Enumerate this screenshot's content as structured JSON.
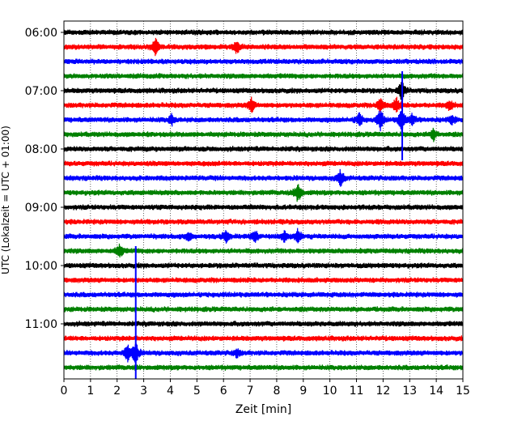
{
  "chart_data": {
    "type": "line",
    "title": "",
    "xlabel": "Zeit  [min]",
    "ylabel": "UTC (Lokalzeit = UTC + 01:00)",
    "xlim": [
      0,
      15
    ],
    "x_ticks": [
      "0",
      "1",
      "2",
      "3",
      "4",
      "5",
      "6",
      "7",
      "8",
      "9",
      "10",
      "11",
      "12",
      "13",
      "14",
      "15"
    ],
    "y_tick_labels": [
      "06:00",
      "07:00",
      "08:00",
      "09:00",
      "10:00",
      "11:00"
    ],
    "y_tick_rows": [
      0,
      4,
      8,
      12,
      16,
      20
    ],
    "grid": "vertical dotted",
    "row_interval_minutes": 15,
    "trace_colors": [
      "#000000",
      "#ff0000",
      "#0000ff",
      "#008000"
    ],
    "rows": [
      {
        "start": "06:00",
        "color": "#000000",
        "events": []
      },
      {
        "start": "06:15",
        "color": "#ff0000",
        "events": [
          {
            "t": 3.45,
            "amp": 1.2
          },
          {
            "t": 6.5,
            "amp": 0.8
          }
        ]
      },
      {
        "start": "06:30",
        "color": "#0000ff",
        "events": []
      },
      {
        "start": "06:45",
        "color": "#008000",
        "events": []
      },
      {
        "start": "07:00",
        "color": "#000000",
        "events": [
          {
            "t": 12.7,
            "amp": 1.5
          }
        ]
      },
      {
        "start": "07:15",
        "color": "#ff0000",
        "events": [
          {
            "t": 7.05,
            "amp": 1.0
          },
          {
            "t": 11.9,
            "amp": 1.1
          },
          {
            "t": 12.5,
            "amp": 1.1
          },
          {
            "t": 14.5,
            "amp": 0.7
          }
        ]
      },
      {
        "start": "07:30",
        "color": "#0000ff",
        "events": [
          {
            "t": 4.05,
            "amp": 0.7
          },
          {
            "t": 11.1,
            "amp": 1.0
          },
          {
            "t": 11.9,
            "amp": 1.6
          },
          {
            "t": 12.7,
            "amp": 1.8
          },
          {
            "t": 13.1,
            "amp": 0.8
          },
          {
            "t": 14.6,
            "amp": 0.6
          }
        ]
      },
      {
        "start": "07:45",
        "color": "#008000",
        "events": [
          {
            "t": 13.9,
            "amp": 0.8
          }
        ]
      },
      {
        "start": "08:00",
        "color": "#000000",
        "events": []
      },
      {
        "start": "08:15",
        "color": "#ff0000",
        "events": []
      },
      {
        "start": "08:30",
        "color": "#0000ff",
        "events": [
          {
            "t": 10.4,
            "amp": 1.2
          }
        ]
      },
      {
        "start": "08:45",
        "color": "#008000",
        "events": [
          {
            "t": 8.8,
            "amp": 1.5
          }
        ]
      },
      {
        "start": "09:00",
        "color": "#000000",
        "events": []
      },
      {
        "start": "09:15",
        "color": "#ff0000",
        "events": []
      },
      {
        "start": "09:30",
        "color": "#0000ff",
        "events": [
          {
            "t": 4.7,
            "amp": 0.6
          },
          {
            "t": 6.1,
            "amp": 0.8
          },
          {
            "t": 7.2,
            "amp": 0.8
          },
          {
            "t": 8.3,
            "amp": 0.8
          },
          {
            "t": 8.8,
            "amp": 1.0
          }
        ]
      },
      {
        "start": "09:45",
        "color": "#008000",
        "events": [
          {
            "t": 2.1,
            "amp": 1.0
          }
        ]
      },
      {
        "start": "10:00",
        "color": "#000000",
        "events": []
      },
      {
        "start": "10:15",
        "color": "#ff0000",
        "events": []
      },
      {
        "start": "10:30",
        "color": "#0000ff",
        "events": []
      },
      {
        "start": "10:45",
        "color": "#008000",
        "events": []
      },
      {
        "start": "11:00",
        "color": "#000000",
        "events": []
      },
      {
        "start": "11:15",
        "color": "#ff0000",
        "events": []
      },
      {
        "start": "11:30",
        "color": "#0000ff",
        "events": [
          {
            "t": 2.4,
            "amp": 1.3
          },
          {
            "t": 2.7,
            "amp": 1.6
          },
          {
            "t": 6.5,
            "amp": 0.6
          }
        ]
      },
      {
        "start": "11:45",
        "color": "#008000",
        "events": []
      }
    ],
    "long_spikes": [
      {
        "t": 2.7,
        "from_row": 15,
        "to_row": 24,
        "color": "#0000ff"
      },
      {
        "t": 12.72,
        "from_row": 3,
        "to_row": 9,
        "color": "#0000ff"
      }
    ]
  }
}
